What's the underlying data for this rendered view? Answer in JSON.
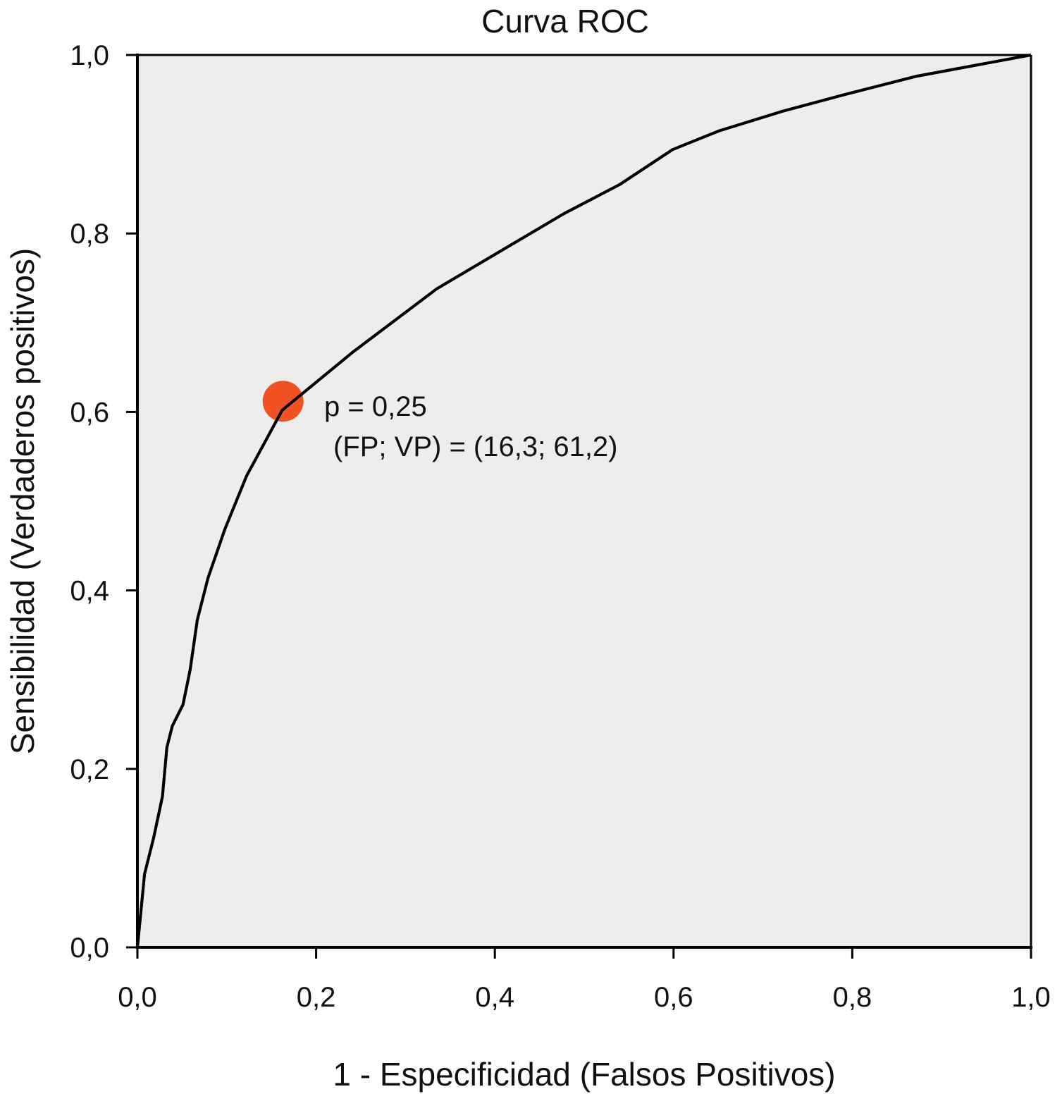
{
  "chart_data": {
    "type": "line",
    "title": "Curva ROC",
    "xlabel": "1 - Especificidad (Falsos Positivos)",
    "ylabel": "Sensibilidad (Verdaderos positivos)",
    "xlim": [
      0,
      1
    ],
    "ylim": [
      0,
      1
    ],
    "grid": false,
    "x_ticks": [
      "0,0",
      "0,2",
      "0,4",
      "0,6",
      "0,8",
      "1,0"
    ],
    "y_ticks": [
      "0,0",
      "0,2",
      "0,4",
      "0,6",
      "0,8",
      "1,0"
    ],
    "plot_background": "#ededed",
    "line_color": "#000000",
    "series": [
      {
        "x": [
          0,
          0.008,
          0.018,
          0.028,
          0.033,
          0.039,
          0.051,
          0.059,
          0.067,
          0.079,
          0.098,
          0.122,
          0.162,
          0.241,
          0.335,
          0.477,
          0.54,
          0.599,
          0.651,
          0.722,
          0.793,
          0.871,
          1.0
        ],
        "y": [
          0,
          0.082,
          0.122,
          0.169,
          0.224,
          0.248,
          0.272,
          0.311,
          0.367,
          0.414,
          0.469,
          0.528,
          0.602,
          0.667,
          0.738,
          0.822,
          0.855,
          0.894,
          0.915,
          0.937,
          0.956,
          0.976,
          1.0
        ]
      }
    ],
    "highlight_point": {
      "x": 0.163,
      "y": 0.612,
      "color": "#f05223"
    },
    "annotations": [
      "p = 0,25",
      "(FP; VP) = (16,3; 61,2)"
    ]
  }
}
